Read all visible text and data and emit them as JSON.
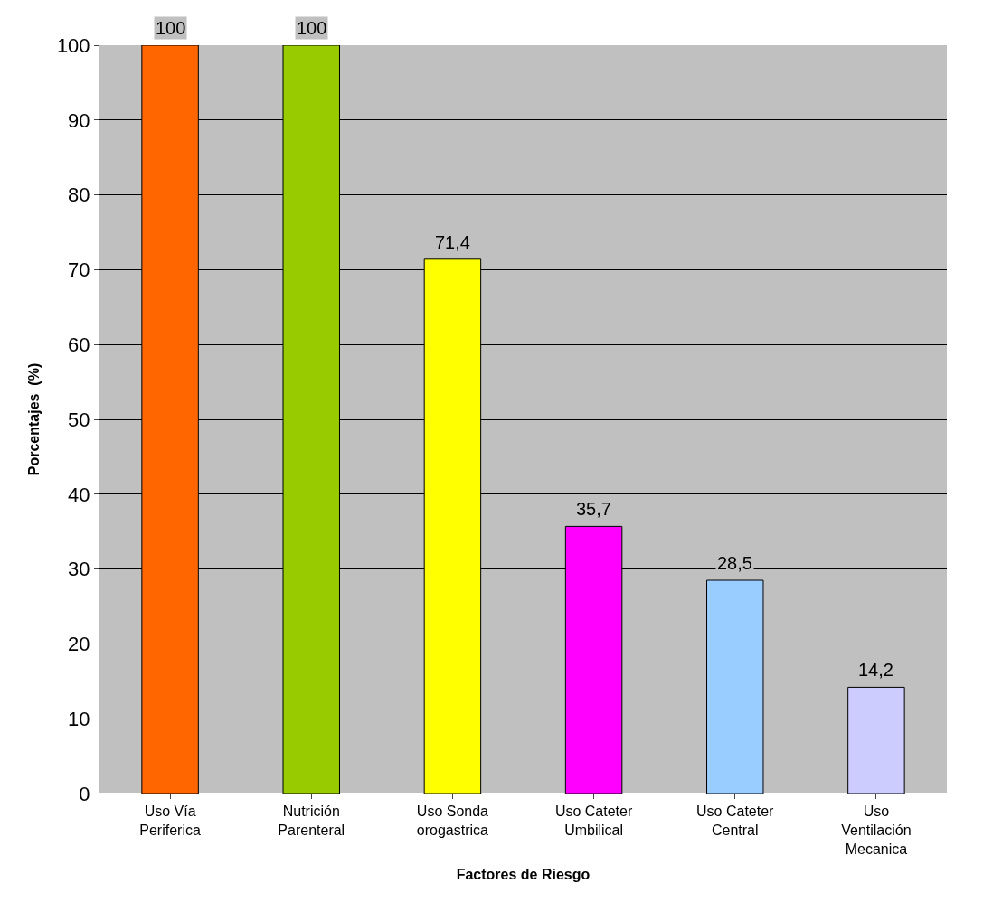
{
  "chart_data": {
    "type": "bar",
    "xlabel": "Factores de Riesgo",
    "ylabel": "Porcentajes  (%)",
    "categories": [
      "Uso Vía\nPeriferica",
      "Nutrición\nParenteral",
      "Uso Sonda\norogastrica",
      "Uso Cateter\nUmbilical",
      "Uso Cateter\nCentral",
      "Uso\nVentilación\nMecanica"
    ],
    "values": [
      100,
      100,
      71.4,
      35.7,
      28.5,
      14.2
    ],
    "value_labels": [
      "100",
      "100",
      "71,4",
      "35,7",
      "28,5",
      "14,2"
    ],
    "colors": [
      "#ff6600",
      "#99cc00",
      "#ffff00",
      "#ff00ff",
      "#99ccff",
      "#ccccff"
    ],
    "ylim": [
      0,
      100
    ],
    "yticks": [
      0,
      10,
      20,
      30,
      40,
      50,
      60,
      70,
      80,
      90,
      100
    ],
    "grid": "y"
  }
}
